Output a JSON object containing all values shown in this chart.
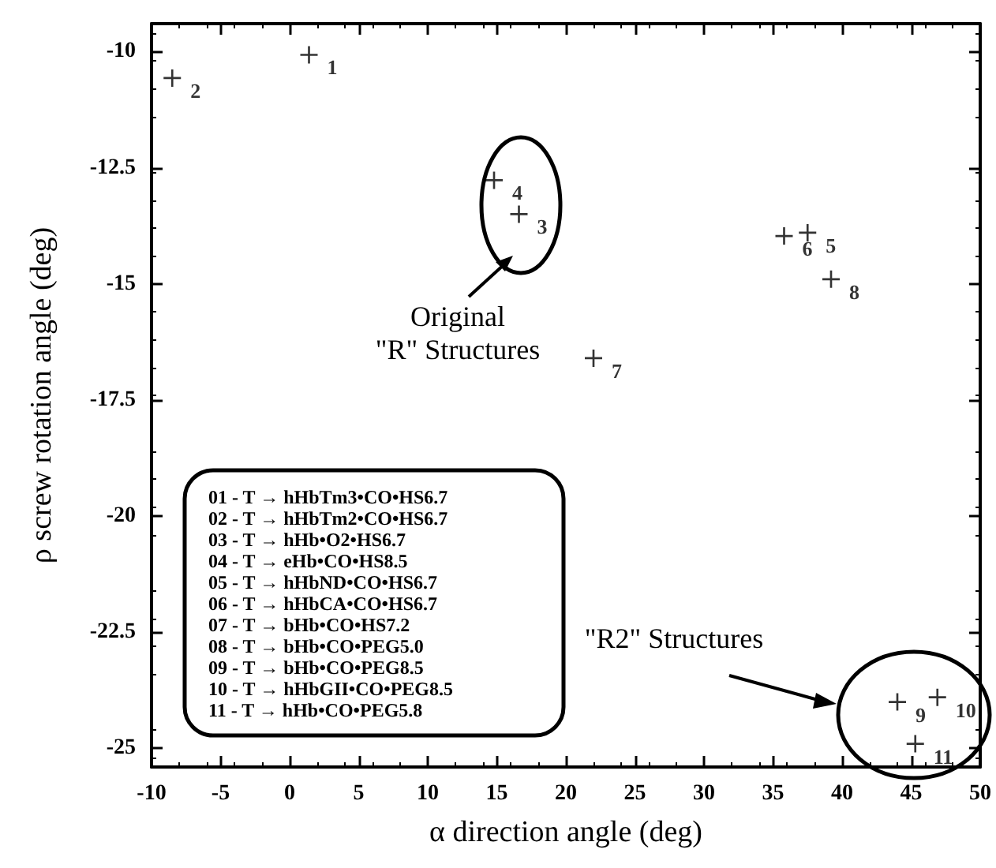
{
  "chart_data": {
    "type": "scatter",
    "xlabel": "α direction angle (deg)",
    "ylabel": "ρ screw rotation angle (deg)",
    "series": [
      {
        "name": "1",
        "x": [
          1.4
        ],
        "values": [
          -10.07
        ]
      },
      {
        "name": "2",
        "x": [
          -8.5
        ],
        "values": [
          -10.57
        ]
      },
      {
        "name": "3",
        "x": [
          16.6
        ],
        "values": [
          -13.5
        ]
      },
      {
        "name": "4",
        "x": [
          14.8
        ],
        "values": [
          -12.77
        ]
      },
      {
        "name": "5",
        "x": [
          37.5
        ],
        "values": [
          -13.9
        ]
      },
      {
        "name": "6",
        "x": [
          35.8
        ],
        "values": [
          -13.97
        ]
      },
      {
        "name": "7",
        "x": [
          22.0
        ],
        "values": [
          -16.6
        ]
      },
      {
        "name": "8",
        "x": [
          39.2
        ],
        "values": [
          -14.9
        ]
      },
      {
        "name": "9",
        "x": [
          44.0
        ],
        "values": [
          -24.0
        ]
      },
      {
        "name": "10",
        "x": [
          46.9
        ],
        "values": [
          -23.9
        ]
      },
      {
        "name": "11",
        "x": [
          45.3
        ],
        "values": [
          -24.9
        ]
      }
    ],
    "color": "#000000",
    "marker": "cross",
    "xlim": [
      -10,
      50
    ],
    "xticks": [
      -10,
      -5,
      0,
      5,
      10,
      15,
      20,
      25,
      30,
      35,
      40,
      45,
      50
    ],
    "ylim": [
      -25.4,
      -9.4
    ],
    "yticks": [
      -10,
      -12.5,
      -15,
      -17.5,
      -20,
      -22.5,
      -25
    ],
    "annotations": [
      "Original\n\"R\" Structures",
      "\"R2\" Structures",
      "01 - T → hHbTm3•CO•HS6.7",
      "02 - T → hHbTm2•CO•HS6.7",
      "03 - T → hHb•O2•HS6.7",
      "04 - T → eHb•CO•HS8.5",
      "05 - T → hHbND•CO•HS6.7",
      "06 - T → hHbCA•CO•HS6.7",
      "07 - T → bHb•CO•HS7.2",
      "08 - T → bHb•CO•PEG5.0",
      "09 - T → bHb•CO•PEG8.5",
      "10 - T → hHbGII•CO•PEG8.5",
      "11 - T → hHb•CO•PEG5.8"
    ]
  }
}
